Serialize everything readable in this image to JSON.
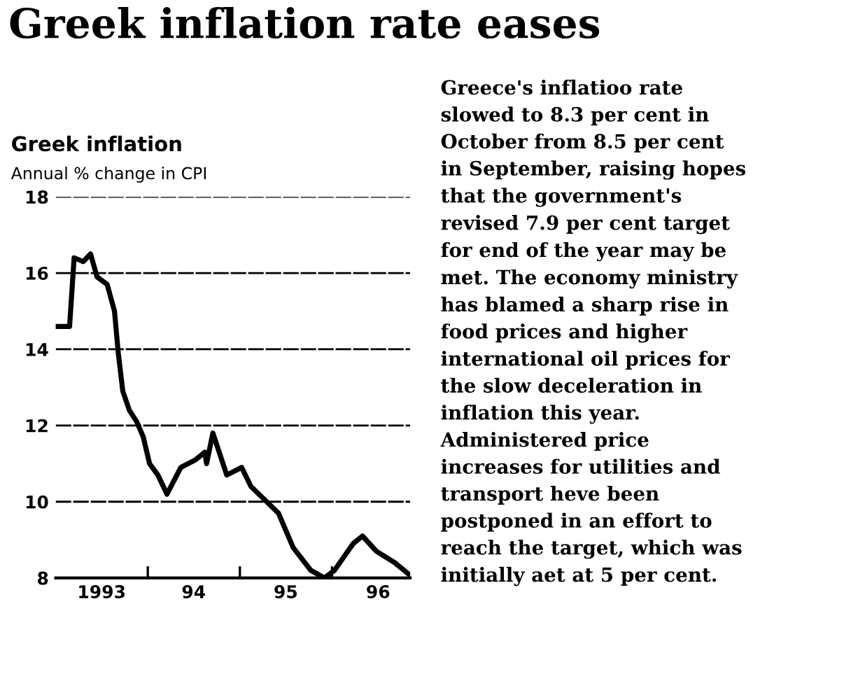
{
  "chart_data": {
    "type": "line",
    "title": "Greek inflation rate eases",
    "subtitle": "Greek inflation",
    "ylabel": "Annual % change in CPI",
    "x": [
      "1993-01-01",
      "1993-02-25",
      "1993-03-15",
      "1993-04-20",
      "1993-05-19",
      "1993-06-14",
      "1993-07-24",
      "1993-08-22",
      "1993-09-06",
      "1993-09-24",
      "1993-10-20",
      "1993-11-18",
      "1993-12-14",
      "1994-01-08",
      "1994-02-10",
      "1994-03-18",
      "1994-05-12",
      "1994-07-09",
      "1994-08-15",
      "1994-08-22",
      "1994-09-16",
      "1994-11-10",
      "1995-01-08",
      "1995-02-14",
      "1995-06-03",
      "1995-07-31",
      "1995-10-09",
      "1995-12-02",
      "1996-01-11",
      "1996-03-25",
      "1996-05-01",
      "1996-06-25",
      "1996-09-06",
      "1996-10-31"
    ],
    "series": [
      {
        "color": "#000000",
        "values": [
          14.6,
          14.6,
          16.4,
          16.3,
          16.5,
          15.9,
          15.7,
          15.0,
          13.9,
          12.9,
          12.4,
          12.1,
          11.7,
          11.0,
          10.7,
          10.2,
          10.9,
          11.1,
          11.3,
          11.0,
          11.8,
          10.7,
          10.9,
          10.4,
          9.7,
          8.8,
          8.2,
          8.0,
          8.2,
          8.9,
          9.1,
          8.7,
          8.4,
          8.1
        ]
      }
    ],
    "xlim": [
      "1993-01-01",
      "1996-11-06"
    ],
    "ylim": [
      8,
      18
    ],
    "yticks": [
      8,
      10,
      12,
      14,
      16,
      18
    ],
    "xticks": [
      {
        "value": "1993-07-02",
        "label": "1993"
      },
      {
        "value": "1994-01-01",
        "label": null
      },
      {
        "value": "1994-07-02",
        "label": "94"
      },
      {
        "value": "1995-01-01",
        "label": null
      },
      {
        "value": "1995-07-02",
        "label": "95"
      },
      {
        "value": "1996-01-01",
        "label": null
      },
      {
        "value": "1996-07-02",
        "label": "96"
      }
    ],
    "grid": "y",
    "legend": false,
    "marker": "none",
    "line_style": "solid",
    "annotations": [
      "Greece's inflatioo rate\nslowed to 8.3 per cent in\nOctober from 8.5 per cent\nin September, raising hopes\nthat the government's\nrevised 7.9 per cent target\nfor end of the year may be\nmet. The economy ministry\nhas blamed a sharp rise in\nfood prices and higher\ninternational oil prices for\nthe slow deceleration in\ninflation this year.\nAdministered price\nincreases for utilities and\ntransport heve been\npostponed in an effort to\nreach the target, which was\ninitially aet at 5 per cent."
    ]
  }
}
